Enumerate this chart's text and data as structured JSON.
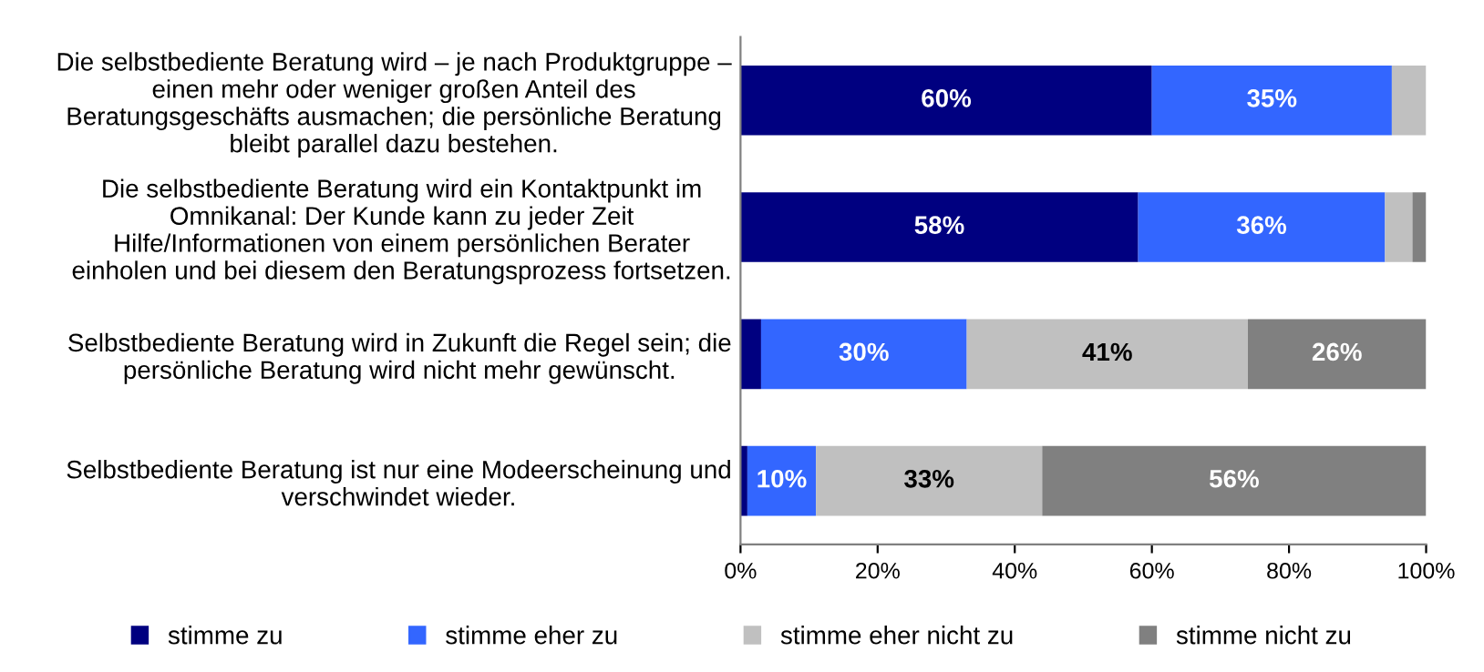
{
  "chart_data": {
    "type": "bar",
    "orientation": "horizontal",
    "stacked": true,
    "categories": [
      "Die selbstbediente Beratung wird – je nach Produktgruppe –\neinen mehr oder weniger großen Anteil des\nBeratungsgeschäfts ausmachen; die persönliche Beratung\nbleibt parallel dazu bestehen.",
      "Die selbstbediente Beratung wird ein Kontaktpunkt im\nOmnikanal: Der Kunde kann zu jeder Zeit\nHilfe/Informationen von einem persönlichen Berater\neinholen und bei diesem den Beratungsprozess fortsetzen.",
      "Selbstbediente Beratung wird in Zukunft die Regel sein; die\npersönliche Beratung wird nicht mehr gewünscht.",
      "Selbstbediente Beratung ist nur eine Modeerscheinung und\nverschwindet wieder."
    ],
    "series": [
      {
        "name": "stimme zu",
        "color": "#000080",
        "values": [
          60,
          58,
          3,
          1
        ],
        "value_labels": [
          "60%",
          "58%",
          null,
          null
        ]
      },
      {
        "name": "stimme eher zu",
        "color": "#3366ff",
        "values": [
          35,
          36,
          30,
          10
        ],
        "value_labels": [
          "35%",
          "36%",
          "30%",
          "10%"
        ]
      },
      {
        "name": "stimme eher nicht zu",
        "color": "#c0c0c0",
        "values": [
          5,
          4,
          41,
          33
        ],
        "value_labels": [
          null,
          null,
          "41%",
          "33%"
        ]
      },
      {
        "name": "stimme nicht zu",
        "color": "#808080",
        "values": [
          0,
          2,
          26,
          56
        ],
        "value_labels": [
          null,
          null,
          "26%",
          "56%"
        ]
      }
    ],
    "xlim": [
      0,
      100
    ],
    "xticks": [
      {
        "value": 0,
        "label": "0%"
      },
      {
        "value": 20,
        "label": "20%"
      },
      {
        "value": 40,
        "label": "40%"
      },
      {
        "value": 60,
        "label": "60%"
      },
      {
        "value": 80,
        "label": "80%"
      },
      {
        "value": 100,
        "label": "100%"
      }
    ],
    "grid": false,
    "legend": "bottom"
  }
}
